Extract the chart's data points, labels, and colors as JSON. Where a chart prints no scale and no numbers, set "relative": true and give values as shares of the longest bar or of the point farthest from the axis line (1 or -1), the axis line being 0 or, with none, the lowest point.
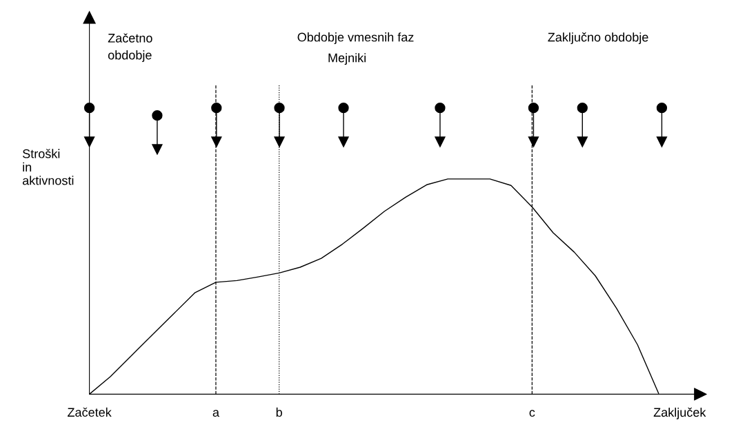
{
  "chart_data": {
    "type": "line",
    "relative": true,
    "ylabel": "Stroški\nin\naktivnosti",
    "categories": [
      "Začetek",
      null,
      null,
      null,
      null,
      null,
      "a",
      null,
      null,
      "b",
      null,
      null,
      null,
      null,
      null,
      null,
      null,
      null,
      null,
      null,
      null,
      "c",
      null,
      null,
      null,
      null,
      null,
      null,
      "Zaključek"
    ],
    "series": [
      {
        "color": "#000000",
        "values": [
          0,
          0.082,
          0.18,
          0.277,
          0.374,
          0.471,
          0.52,
          0.528,
          0.545,
          0.563,
          0.59,
          0.631,
          0.697,
          0.772,
          0.85,
          0.915,
          0.973,
          1,
          1,
          1,
          0.97,
          0.87,
          0.75,
          0.66,
          0.55,
          0.4,
          0.23,
          0.004,
          null
        ]
      }
    ],
    "ref_lines": [
      {
        "axis": "x",
        "value": "a",
        "line_style": "dashed",
        "color": "#000000"
      },
      {
        "axis": "x",
        "value": "b",
        "line_style": "dotted",
        "color": "#000000"
      },
      {
        "axis": "x",
        "value": "c",
        "line_style": "dashed",
        "color": "#000000"
      }
    ],
    "annotations": [
      "Začetno\nobdobje",
      "Obdobje vmesnih faz",
      "Mejniki",
      "Zaključno obdobje"
    ],
    "grid": false,
    "legend": false,
    "marker": "none",
    "line_style": "solid"
  }
}
